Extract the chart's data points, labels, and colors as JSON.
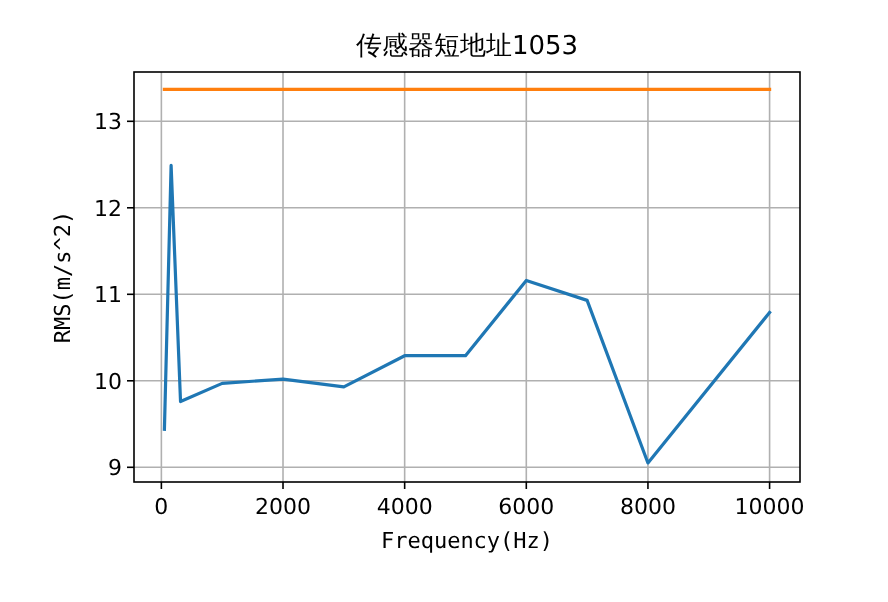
{
  "chart_data": {
    "type": "line",
    "title": "传感器短地址1053",
    "xlabel": "Frequency(Hz)",
    "ylabel": "RMS(m/s^2)",
    "series": [
      {
        "color": "#1f77b4",
        "x": [
          50,
          160,
          315,
          1000,
          2000,
          3000,
          4000,
          5000,
          6000,
          7000,
          8000,
          10000
        ],
        "values": [
          9.44,
          12.49,
          9.76,
          9.97,
          10.02,
          9.93,
          10.29,
          10.29,
          11.16,
          10.93,
          9.05,
          10.79
        ]
      },
      {
        "color": "#ff7f0e",
        "x": [
          50,
          10000
        ],
        "values": [
          13.37,
          13.37
        ]
      }
    ],
    "xlim": [
      -450,
      10500
    ],
    "ylim": [
      8.83,
      13.57
    ],
    "xticks": [
      0,
      2000,
      4000,
      6000,
      8000,
      10000
    ],
    "yticks": [
      9,
      10,
      11,
      12,
      13
    ],
    "grid": true
  }
}
